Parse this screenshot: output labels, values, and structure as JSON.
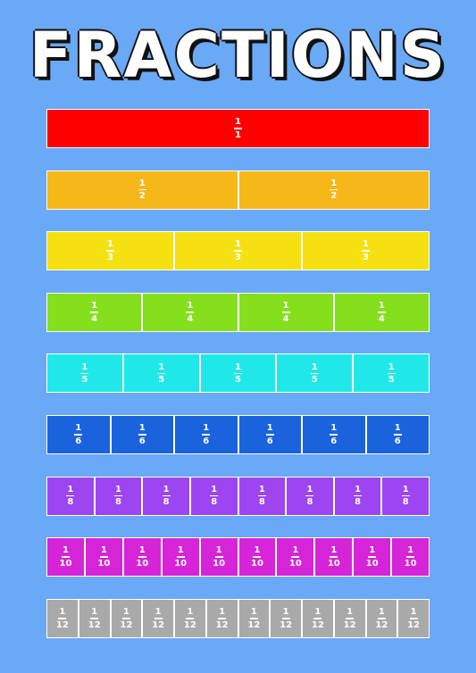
{
  "header": {
    "title": "FRACTIONS"
  },
  "rows": [
    {
      "color": "#ff0000",
      "cells": [
        {
          "numerator": 1,
          "denominator": 1
        }
      ]
    },
    {
      "color": "#f6b719",
      "cells": [
        {
          "numerator": 1,
          "denominator": 2
        },
        {
          "numerator": 1,
          "denominator": 2
        }
      ]
    },
    {
      "color": "#f5e012",
      "cells": [
        {
          "numerator": 1,
          "denominator": 3
        },
        {
          "numerator": 1,
          "denominator": 3
        },
        {
          "numerator": 1,
          "denominator": 3
        }
      ]
    },
    {
      "color": "#86df1d",
      "cells": [
        {
          "numerator": 1,
          "denominator": 4
        },
        {
          "numerator": 1,
          "denominator": 4
        },
        {
          "numerator": 1,
          "denominator": 4
        },
        {
          "numerator": 1,
          "denominator": 4
        }
      ]
    },
    {
      "color": "#20e8e8",
      "cells": [
        {
          "numerator": 1,
          "denominator": 5
        },
        {
          "numerator": 1,
          "denominator": 5
        },
        {
          "numerator": 1,
          "denominator": 5
        },
        {
          "numerator": 1,
          "denominator": 5
        },
        {
          "numerator": 1,
          "denominator": 5
        }
      ]
    },
    {
      "color": "#1a63dd",
      "cells": [
        {
          "numerator": 1,
          "denominator": 6
        },
        {
          "numerator": 1,
          "denominator": 6
        },
        {
          "numerator": 1,
          "denominator": 6
        },
        {
          "numerator": 1,
          "denominator": 6
        },
        {
          "numerator": 1,
          "denominator": 6
        },
        {
          "numerator": 1,
          "denominator": 6
        }
      ]
    },
    {
      "color": "#9c45f0",
      "cells": [
        {
          "numerator": 1,
          "denominator": 8
        },
        {
          "numerator": 1,
          "denominator": 8
        },
        {
          "numerator": 1,
          "denominator": 8
        },
        {
          "numerator": 1,
          "denominator": 8
        },
        {
          "numerator": 1,
          "denominator": 8
        },
        {
          "numerator": 1,
          "denominator": 8
        },
        {
          "numerator": 1,
          "denominator": 8
        },
        {
          "numerator": 1,
          "denominator": 8
        }
      ]
    },
    {
      "color": "#d624d8",
      "cells": [
        {
          "numerator": 1,
          "denominator": 10
        },
        {
          "numerator": 1,
          "denominator": 10
        },
        {
          "numerator": 1,
          "denominator": 10
        },
        {
          "numerator": 1,
          "denominator": 10
        },
        {
          "numerator": 1,
          "denominator": 10
        },
        {
          "numerator": 1,
          "denominator": 10
        },
        {
          "numerator": 1,
          "denominator": 10
        },
        {
          "numerator": 1,
          "denominator": 10
        },
        {
          "numerator": 1,
          "denominator": 10
        },
        {
          "numerator": 1,
          "denominator": 10
        }
      ]
    },
    {
      "color": "#a9a9a9",
      "cells": [
        {
          "numerator": 1,
          "denominator": 12
        },
        {
          "numerator": 1,
          "denominator": 12
        },
        {
          "numerator": 1,
          "denominator": 12
        },
        {
          "numerator": 1,
          "denominator": 12
        },
        {
          "numerator": 1,
          "denominator": 12
        },
        {
          "numerator": 1,
          "denominator": 12
        },
        {
          "numerator": 1,
          "denominator": 12
        },
        {
          "numerator": 1,
          "denominator": 12
        },
        {
          "numerator": 1,
          "denominator": 12
        },
        {
          "numerator": 1,
          "denominator": 12
        },
        {
          "numerator": 1,
          "denominator": 12
        },
        {
          "numerator": 1,
          "denominator": 12
        }
      ]
    }
  ]
}
